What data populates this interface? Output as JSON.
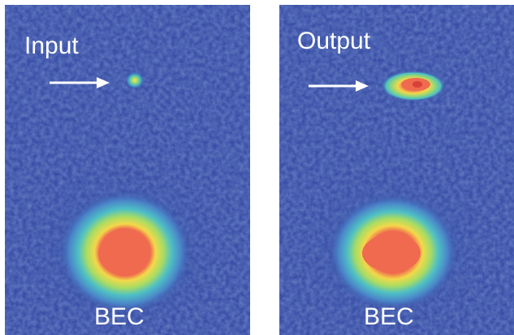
{
  "panels": [
    {
      "title": "Input",
      "bottom_label": "BEC",
      "arrow_icon": "right-arrow-icon"
    },
    {
      "title": "Output",
      "bottom_label": "BEC",
      "arrow_icon": "right-arrow-icon"
    }
  ],
  "colors": {
    "background": "#3a4ea6",
    "divider": "#ffffff",
    "label": "#ffffff"
  }
}
